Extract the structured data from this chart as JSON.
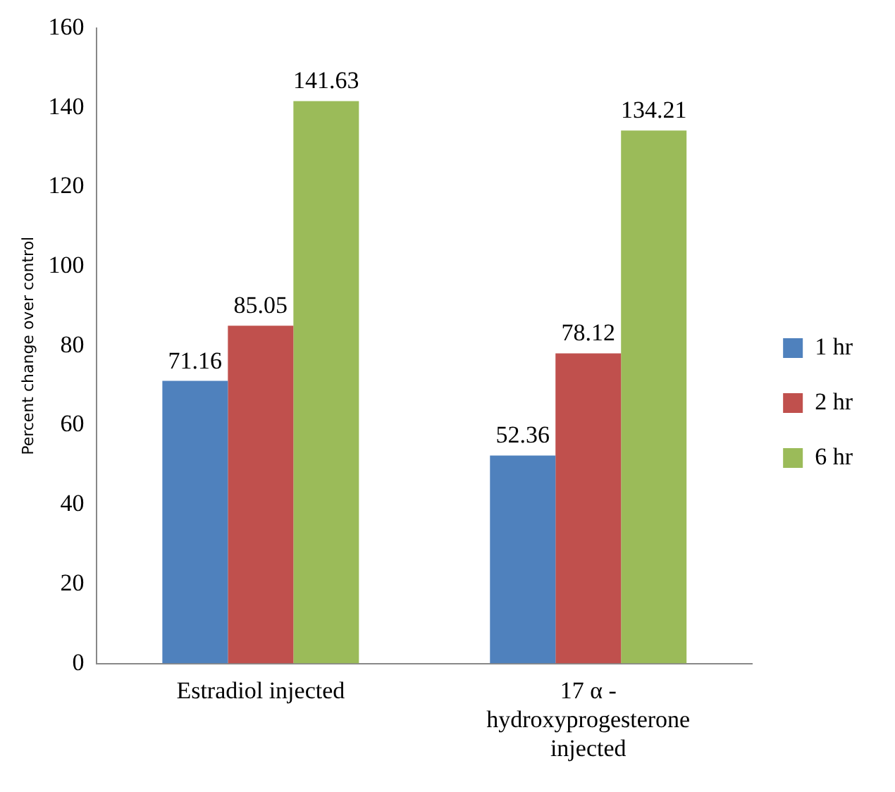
{
  "chart_data": {
    "type": "bar",
    "ylabel": "Percent change over control",
    "categories": [
      "Estradiol injected",
      "17 α - hydroxyprogesterone injected"
    ],
    "series": [
      {
        "name": "1 hr",
        "color": "#4f81bd",
        "values": [
          71.16,
          52.36
        ]
      },
      {
        "name": "2 hr",
        "color": "#c0504d",
        "values": [
          85.05,
          78.12
        ]
      },
      {
        "name": "6 hr",
        "color": "#9bbb59",
        "values": [
          141.63,
          134.21
        ]
      }
    ],
    "ylim": [
      0,
      160
    ],
    "yticks": [
      0,
      20,
      40,
      60,
      80,
      100,
      120,
      140,
      160
    ],
    "grid": false,
    "legend": "right",
    "data_labels": true
  }
}
